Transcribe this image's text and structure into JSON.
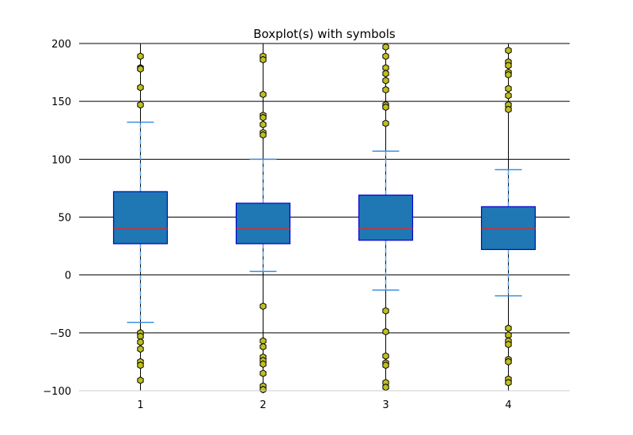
{
  "chart_data": {
    "type": "boxplot",
    "title": "Boxplot(s) with symbols",
    "xlabel": "",
    "ylabel": "",
    "ylim": [
      -100,
      200
    ],
    "yticks": [
      200,
      150,
      100,
      50,
      0,
      -50,
      -100
    ],
    "ytick_labels": [
      "200",
      "150",
      "100",
      "50",
      "0",
      "−50",
      "−100"
    ],
    "grid": {
      "y": true,
      "x": false
    },
    "colors": {
      "box_fill": "#1f77b4",
      "box_edge": "#0000cc",
      "median": "#cc3333",
      "whisker": "#5aa0e6",
      "cap": "#3a8fe0",
      "flier_fill": "#bfbf1f",
      "flier_edge": "#000000",
      "grid": "#000000",
      "axis_bottom": "#cccccc"
    },
    "boxes": [
      {
        "label": "1",
        "q1": 27,
        "median": 40,
        "q3": 72,
        "whisker_low": -41,
        "whisker_high": 132,
        "fliers_high": [
          189,
          179,
          178,
          162,
          147
        ],
        "fliers_low": [
          -50,
          -53,
          -58,
          -64,
          -75,
          -78,
          -91
        ]
      },
      {
        "label": "2",
        "q1": 27,
        "median": 40,
        "q3": 62,
        "whisker_low": 3,
        "whisker_high": 100,
        "fliers_high": [
          189,
          186,
          156,
          138,
          136,
          130,
          123,
          121
        ],
        "fliers_low": [
          -27,
          -57,
          -62,
          -71,
          -74,
          -77,
          -85,
          -96,
          -99
        ]
      },
      {
        "label": "3",
        "q1": 30,
        "median": 40,
        "q3": 69,
        "whisker_low": -13,
        "whisker_high": 107,
        "fliers_high": [
          197,
          189,
          179,
          174,
          168,
          160,
          147,
          145,
          131
        ],
        "fliers_low": [
          -31,
          -49,
          -70,
          -76,
          -78,
          -93,
          -97
        ]
      },
      {
        "label": "4",
        "q1": 22,
        "median": 40,
        "q3": 59,
        "whisker_low": -18,
        "whisker_high": 91,
        "fliers_high": [
          194,
          184,
          181,
          175,
          173,
          161,
          155,
          147,
          143
        ],
        "fliers_low": [
          -46,
          -52,
          -57,
          -60,
          -73,
          -75,
          -90,
          -93
        ]
      }
    ]
  }
}
